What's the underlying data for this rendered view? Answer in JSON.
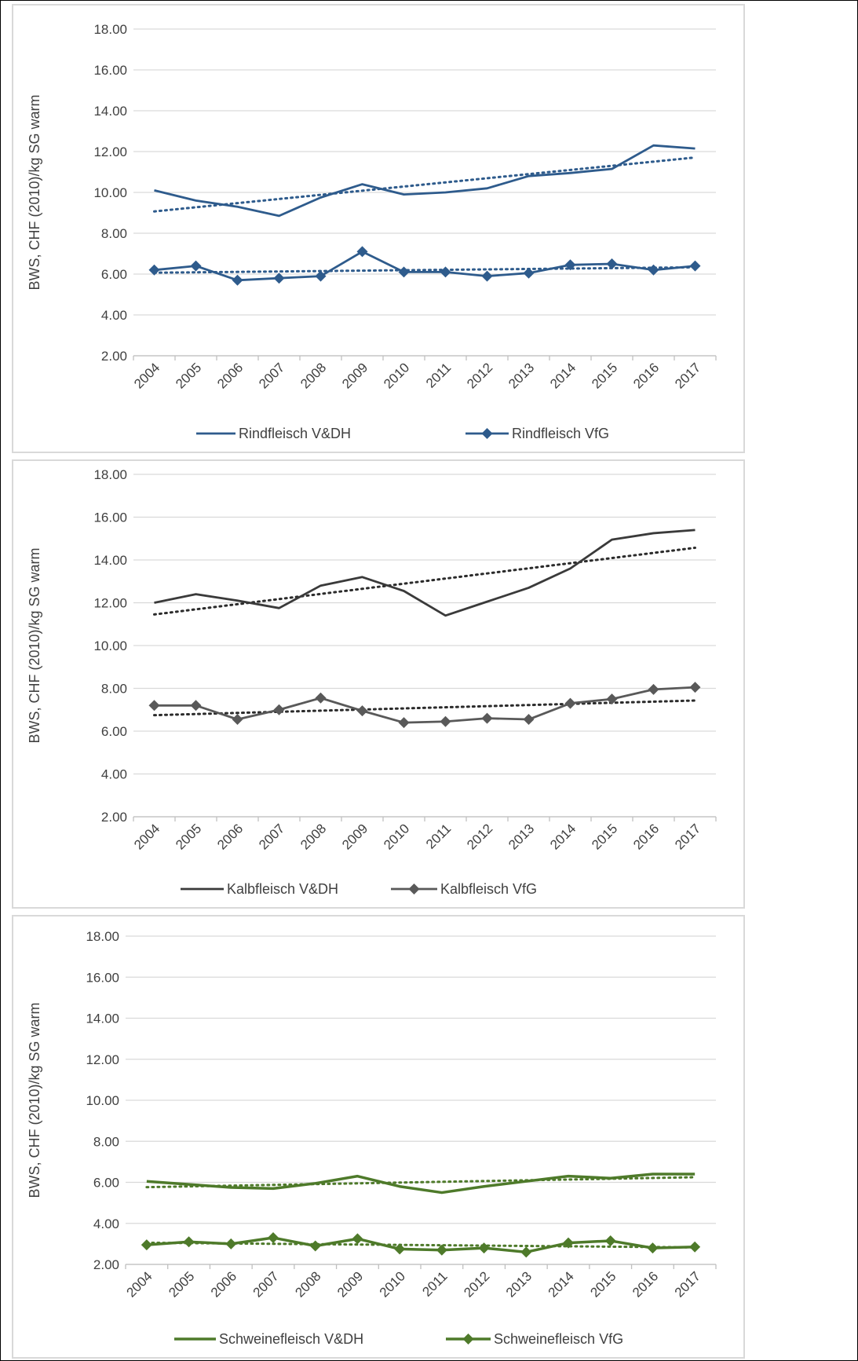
{
  "chart_data": [
    {
      "type": "line",
      "ylabel": "BWS, CHF (2010)/kg SG warm",
      "ylim": [
        2,
        18
      ],
      "yticks": [
        "2.00",
        "4.00",
        "6.00",
        "8.00",
        "10.00",
        "12.00",
        "14.00",
        "16.00",
        "18.00"
      ],
      "categories": [
        "2004",
        "2005",
        "2006",
        "2007",
        "2008",
        "2009",
        "2010",
        "2011",
        "2012",
        "2013",
        "2014",
        "2015",
        "2016",
        "2017"
      ],
      "grid": true,
      "legend_position": "bottom",
      "trendlines": "dotted linear trendline for each series",
      "series": [
        {
          "name": "Rindfleisch V&DH",
          "marker": "none",
          "color": "#2e5b8c",
          "values": [
            10.1,
            9.6,
            9.3,
            8.85,
            9.75,
            10.4,
            9.9,
            10.0,
            10.2,
            10.8,
            10.95,
            11.15,
            12.3,
            12.15
          ]
        },
        {
          "name": "Rindfleisch VfG",
          "marker": "diamond",
          "color": "#2e5b8c",
          "values": [
            6.2,
            6.4,
            5.7,
            5.8,
            5.9,
            7.1,
            6.1,
            6.1,
            5.9,
            6.05,
            6.45,
            6.5,
            6.2,
            6.4
          ]
        }
      ]
    },
    {
      "type": "line",
      "ylabel": "BWS, CHF (2010)/kg SG warm",
      "ylim": [
        2,
        18
      ],
      "yticks": [
        "2.00",
        "4.00",
        "6.00",
        "8.00",
        "10.00",
        "12.00",
        "14.00",
        "16.00",
        "18.00"
      ],
      "categories": [
        "2004",
        "2005",
        "2006",
        "2007",
        "2008",
        "2009",
        "2010",
        "2011",
        "2012",
        "2013",
        "2014",
        "2015",
        "2016",
        "2017"
      ],
      "grid": true,
      "legend_position": "bottom",
      "trendlines": "dotted linear trendline for each series",
      "series": [
        {
          "name": "Kalbfleisch V&DH",
          "marker": "none",
          "color": "#3a3a3a",
          "values": [
            12.0,
            12.4,
            12.1,
            11.75,
            12.8,
            13.2,
            12.55,
            11.4,
            12.05,
            12.7,
            13.6,
            14.95,
            15.25,
            15.4
          ]
        },
        {
          "name": "Kalbfleisch VfG",
          "marker": "diamond",
          "color": "#595959",
          "values": [
            7.2,
            7.2,
            6.55,
            7.0,
            7.55,
            6.95,
            6.4,
            6.45,
            6.6,
            6.55,
            7.3,
            7.5,
            7.95,
            8.05
          ]
        }
      ]
    },
    {
      "type": "line",
      "ylabel": "BWS, CHF (2010)/kg SG warm",
      "ylim": [
        2,
        18
      ],
      "yticks": [
        "2.00",
        "4.00",
        "6.00",
        "8.00",
        "10.00",
        "12.00",
        "14.00",
        "16.00",
        "18.00"
      ],
      "categories": [
        "2004",
        "2005",
        "2006",
        "2007",
        "2008",
        "2009",
        "2010",
        "2011",
        "2012",
        "2013",
        "2014",
        "2015",
        "2016",
        "2017"
      ],
      "grid": true,
      "legend_position": "bottom",
      "trendlines": "dotted linear trendline for each series",
      "series": [
        {
          "name": "Schweinefleisch V&DH",
          "marker": "none",
          "color": "#4e7a2a",
          "values": [
            6.05,
            5.9,
            5.75,
            5.7,
            5.95,
            6.3,
            5.8,
            5.5,
            5.8,
            6.05,
            6.3,
            6.2,
            6.4,
            6.4
          ]
        },
        {
          "name": "Schweinefleisch VfG",
          "marker": "diamond",
          "color": "#4e7a2a",
          "values": [
            2.95,
            3.1,
            3.0,
            3.3,
            2.9,
            3.25,
            2.75,
            2.7,
            2.8,
            2.6,
            3.05,
            3.15,
            2.8,
            2.85
          ]
        }
      ]
    }
  ]
}
